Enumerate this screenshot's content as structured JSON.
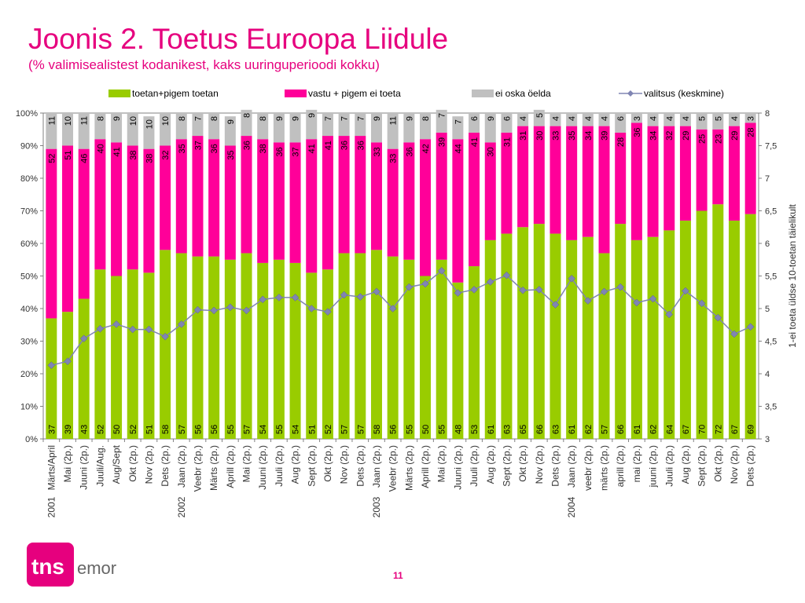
{
  "title": "Joonis 2. Toetus Euroopa Liidule",
  "subtitle": "(% valimisealistest kodanikest, kaks uuringuperioodi kokku)",
  "page_number": "11",
  "logo": {
    "text": "tns emor",
    "brand_color": "#e6007e"
  },
  "colors": {
    "toetan": "#99cc00",
    "vastu": "#ff0099",
    "eioska": "#c0c0c0",
    "valitsus": "#8085b3"
  },
  "chart_data": {
    "type": "bar",
    "stacked": true,
    "categories": [
      "Märts/April",
      "Mai (2p.)",
      "Juuni (2p.)",
      "Juuli/Aug.",
      "Aug/Sept",
      "Okt (2p.)",
      "Nov (2p.)",
      "Dets (2p.)",
      "Jaan (2p.)",
      "Veebr (2p.)",
      "Märts (2p.)",
      "Aprill (2p.)",
      "Mai (2p.)",
      "Juuni (2p.)",
      "Juuli (2p.)",
      "Aug (2p.)",
      "Sept (2p.)",
      "Okt (2p.)",
      "Nov (2p.)",
      "Dets (2p.)",
      "Jaan (2p.)",
      "Veebr (2p.)",
      "Märts (2p.)",
      "Aprill (2p.)",
      "Mai (2p.)",
      "Juuni (2p.)",
      "Juuli (2p.)",
      "Aug (2p.)",
      "Sept (2p.)",
      "Okt (2p.)",
      "Nov (2p.)",
      "Dets (2p.)",
      "Jaan (2p.)",
      "veebr (2p.)",
      "märts (2p.)",
      "aprill (2p.)",
      "mai (2p.)",
      "juuni (2p.)",
      "Juuli (2p.)",
      "Aug (2p.)",
      "Sept (2p.)",
      "Okt (2p.)",
      "Nov (2p.)",
      "Dets (2p.)"
    ],
    "years": [
      {
        "label": "2001",
        "index": 0
      },
      {
        "label": "2002",
        "index": 8
      },
      {
        "label": "2003",
        "index": 20
      },
      {
        "label": "2004",
        "index": 32
      }
    ],
    "series": [
      {
        "name": "toetan+pigem toetan",
        "values": [
          37,
          39,
          43,
          52,
          50,
          52,
          51,
          58,
          57,
          56,
          56,
          55,
          57,
          54,
          55,
          54,
          51,
          52,
          57,
          57,
          58,
          56,
          55,
          50,
          55,
          48,
          53,
          61,
          63,
          65,
          66,
          63,
          61,
          62,
          57,
          66,
          61,
          62,
          64,
          67,
          70,
          72,
          67,
          69
        ]
      },
      {
        "name": "vastu + pigem ei toeta",
        "values": [
          52,
          51,
          46,
          40,
          41,
          38,
          38,
          32,
          35,
          37,
          36,
          35,
          36,
          38,
          36,
          37,
          41,
          41,
          36,
          36,
          33,
          33,
          36,
          42,
          39,
          44,
          41,
          30,
          31,
          31,
          30,
          33,
          35,
          34,
          39,
          28,
          36,
          34,
          32,
          29,
          25,
          23,
          29,
          28
        ]
      },
      {
        "name": "ei oska öelda",
        "values": [
          11,
          10,
          11,
          8,
          9,
          10,
          10,
          10,
          8,
          7,
          8,
          9,
          8,
          8,
          9,
          9,
          9,
          7,
          7,
          7,
          9,
          11,
          9,
          8,
          7,
          7,
          6,
          9,
          6,
          4,
          5,
          4,
          4,
          4,
          4,
          6,
          3,
          4,
          4,
          4,
          5,
          5,
          4,
          3
        ]
      },
      {
        "name": "valitsus (keskmine)",
        "axis": "right",
        "values": [
          4.13,
          4.19,
          4.54,
          4.69,
          4.76,
          4.68,
          4.68,
          4.57,
          4.76,
          4.98,
          4.97,
          5.02,
          4.97,
          5.14,
          5.17,
          5.17,
          5.0,
          4.95,
          5.21,
          5.18,
          5.26,
          5.0,
          5.33,
          5.38,
          5.58,
          5.24,
          5.29,
          5.41,
          5.51,
          5.28,
          5.29,
          5.06,
          5.46,
          5.12,
          5.26,
          5.33,
          5.09,
          5.15,
          4.91,
          5.27,
          5.08,
          4.86,
          4.61,
          4.72
        ]
      }
    ],
    "ylim": [
      0,
      100
    ],
    "y_ticks": [
      "0%",
      "10%",
      "20%",
      "30%",
      "40%",
      "50%",
      "60%",
      "70%",
      "80%",
      "90%",
      "100%"
    ],
    "y2lim": [
      3,
      8
    ],
    "y2_ticks": [
      "3",
      "3,5",
      "4",
      "4,5",
      "5",
      "5,5",
      "6",
      "6,5",
      "7",
      "7,5",
      "8"
    ],
    "y2label": "1-ei toeta üldse  10-toetan täielikult",
    "legend": {
      "position": "top"
    },
    "grid": false
  }
}
